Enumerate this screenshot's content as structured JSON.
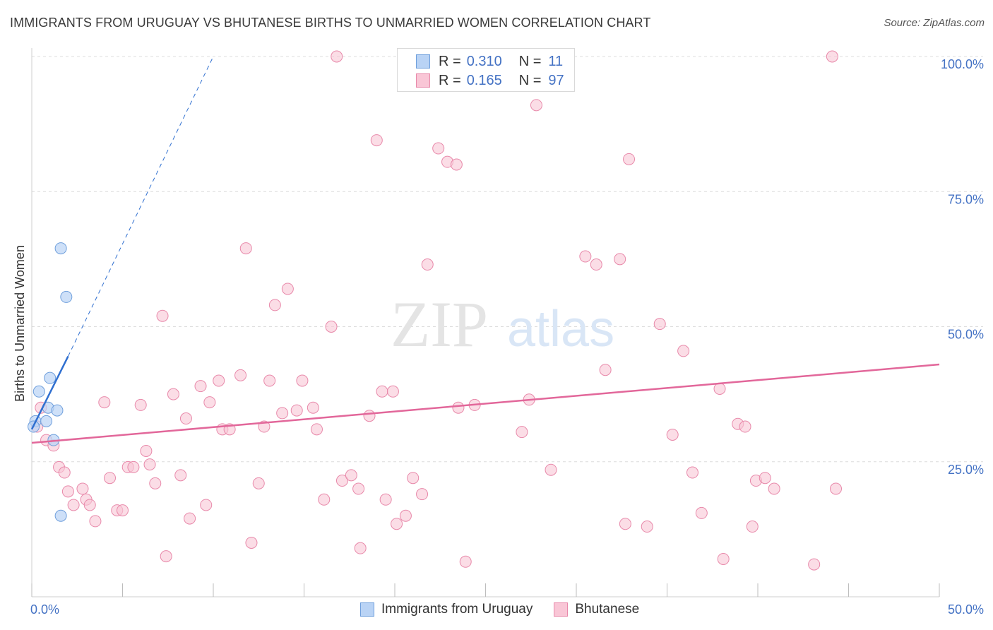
{
  "title": "IMMIGRANTS FROM URUGUAY VS BHUTANESE BIRTHS TO UNMARRIED WOMEN CORRELATION CHART",
  "source": "Source: ZipAtlas.com",
  "watermark": {
    "zip": "ZIP",
    "atlas": "atlas"
  },
  "legend_top": [
    {
      "r_label": "R =",
      "r_value": "0.310",
      "n_label": "N =",
      "n_value": "11"
    },
    {
      "r_label": "R =",
      "r_value": "0.165",
      "n_label": "N =",
      "n_value": "97"
    }
  ],
  "legend_bottom": [
    "Immigrants from Uruguay",
    "Bhutanese"
  ],
  "colors": {
    "uruguay_fill": "#b9d3f5",
    "uruguay_stroke": "#6f9fdc",
    "uruguay_line": "#2f6fd0",
    "bhutanese_fill": "#f9c6d6",
    "bhutanese_stroke": "#e889aa",
    "bhutanese_line": "#e2679a",
    "tick_text": "#4472c4",
    "grid": "#dcdcdc"
  },
  "chart_data": {
    "type": "scatter",
    "title": "IMMIGRANTS FROM URUGUAY VS BHUTANESE BIRTHS TO UNMARRIED WOMEN CORRELATION CHART",
    "xlabel": "",
    "ylabel": "Births to Unmarried Women",
    "xlim": [
      0,
      50
    ],
    "ylim": [
      0,
      105
    ],
    "x_ticks": [
      0,
      5,
      10,
      15,
      20,
      25,
      30,
      35,
      40,
      45,
      50
    ],
    "x_tick_labels": {
      "0": "0.0%",
      "50": "50.0%"
    },
    "y_ticks": [
      25,
      50,
      75,
      100
    ],
    "y_tick_labels": [
      "25.0%",
      "50.0%",
      "75.0%",
      "100.0%"
    ],
    "grid": true,
    "legend_position": "top-center",
    "series": [
      {
        "name": "Immigrants from Uruguay",
        "r": 0.31,
        "n": 11,
        "points": [
          [
            0.2,
            32.5
          ],
          [
            0.4,
            38.0
          ],
          [
            0.9,
            35.0
          ],
          [
            1.0,
            40.5
          ],
          [
            0.8,
            32.5
          ],
          [
            1.2,
            29.0
          ],
          [
            1.4,
            34.5
          ],
          [
            1.6,
            64.5
          ],
          [
            1.9,
            55.5
          ],
          [
            1.6,
            15.0
          ],
          [
            0.1,
            31.5
          ]
        ],
        "trend": {
          "x1": 0.0,
          "y1": 31.0,
          "x2": 2.0,
          "y2": 44.5,
          "dash_x2": 10.0,
          "dash_y2": 100.0
        }
      },
      {
        "name": "Bhutanese",
        "r": 0.165,
        "n": 97,
        "points": [
          [
            0.3,
            31.5
          ],
          [
            0.5,
            35.0
          ],
          [
            0.8,
            29.0
          ],
          [
            1.2,
            28.0
          ],
          [
            1.5,
            24.0
          ],
          [
            1.8,
            23.0
          ],
          [
            2.0,
            19.5
          ],
          [
            2.3,
            17.0
          ],
          [
            2.8,
            20.0
          ],
          [
            3.0,
            18.0
          ],
          [
            3.2,
            17.0
          ],
          [
            3.5,
            14.0
          ],
          [
            4.0,
            36.0
          ],
          [
            4.3,
            22.0
          ],
          [
            4.7,
            16.0
          ],
          [
            5.0,
            16.0
          ],
          [
            5.3,
            24.0
          ],
          [
            5.6,
            24.0
          ],
          [
            6.0,
            35.5
          ],
          [
            6.3,
            27.0
          ],
          [
            6.5,
            24.5
          ],
          [
            6.8,
            21.0
          ],
          [
            7.2,
            52.0
          ],
          [
            7.4,
            7.5
          ],
          [
            7.8,
            37.5
          ],
          [
            8.2,
            22.5
          ],
          [
            8.5,
            33.0
          ],
          [
            8.7,
            14.5
          ],
          [
            9.3,
            39.0
          ],
          [
            9.6,
            17.0
          ],
          [
            9.8,
            36.0
          ],
          [
            10.3,
            40.0
          ],
          [
            10.5,
            31.0
          ],
          [
            10.9,
            31.0
          ],
          [
            11.5,
            41.0
          ],
          [
            11.8,
            64.5
          ],
          [
            12.1,
            10.0
          ],
          [
            12.5,
            21.0
          ],
          [
            12.8,
            31.5
          ],
          [
            13.1,
            40.0
          ],
          [
            13.4,
            54.0
          ],
          [
            13.8,
            34.0
          ],
          [
            14.1,
            57.0
          ],
          [
            14.6,
            34.5
          ],
          [
            14.9,
            40.0
          ],
          [
            15.5,
            35.0
          ],
          [
            15.7,
            31.0
          ],
          [
            16.1,
            18.0
          ],
          [
            16.5,
            50.0
          ],
          [
            16.8,
            100.0
          ],
          [
            17.1,
            21.5
          ],
          [
            17.6,
            22.5
          ],
          [
            18.0,
            20.0
          ],
          [
            18.1,
            9.0
          ],
          [
            18.6,
            33.5
          ],
          [
            19.0,
            84.5
          ],
          [
            19.3,
            38.0
          ],
          [
            19.5,
            18.0
          ],
          [
            19.9,
            38.0
          ],
          [
            20.1,
            13.5
          ],
          [
            20.6,
            15.0
          ],
          [
            21.0,
            22.0
          ],
          [
            21.5,
            19.0
          ],
          [
            21.8,
            61.5
          ],
          [
            22.4,
            83.0
          ],
          [
            22.9,
            80.5
          ],
          [
            23.4,
            80.0
          ],
          [
            23.5,
            35.0
          ],
          [
            23.9,
            6.5
          ],
          [
            24.4,
            35.5
          ],
          [
            27.0,
            30.5
          ],
          [
            27.4,
            36.5
          ],
          [
            27.8,
            91.0
          ],
          [
            28.6,
            23.5
          ],
          [
            30.5,
            63.0
          ],
          [
            31.1,
            61.5
          ],
          [
            31.6,
            42.0
          ],
          [
            32.4,
            62.5
          ],
          [
            32.9,
            81.0
          ],
          [
            32.7,
            13.5
          ],
          [
            33.9,
            13.0
          ],
          [
            34.6,
            50.5
          ],
          [
            35.3,
            30.0
          ],
          [
            35.9,
            45.5
          ],
          [
            36.4,
            23.0
          ],
          [
            36.9,
            15.5
          ],
          [
            37.9,
            38.5
          ],
          [
            38.1,
            7.0
          ],
          [
            38.9,
            32.0
          ],
          [
            39.3,
            31.5
          ],
          [
            39.7,
            13.0
          ],
          [
            39.9,
            21.5
          ],
          [
            40.4,
            22.0
          ],
          [
            40.9,
            20.0
          ],
          [
            43.1,
            6.0
          ],
          [
            44.1,
            100.0
          ],
          [
            44.3,
            20.0
          ]
        ],
        "trend": {
          "x1": 0.0,
          "y1": 28.5,
          "x2": 50.0,
          "y2": 43.0
        }
      }
    ]
  }
}
